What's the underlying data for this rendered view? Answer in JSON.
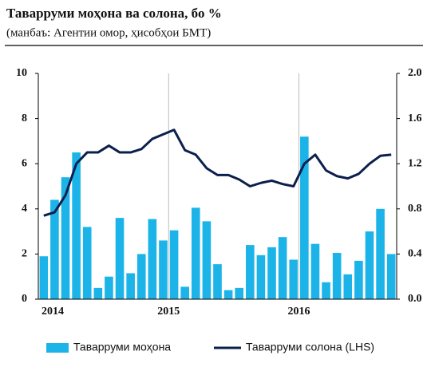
{
  "chart_data": {
    "type": "bar_line",
    "title": "Таварруми моҳона ва солона, бо %",
    "subtitle": "(манбаъ: Агентии омор, ҳисобҳои БМТ)",
    "categories": [
      "2014",
      null,
      null,
      null,
      null,
      null,
      null,
      null,
      null,
      null,
      null,
      null,
      "2015",
      null,
      null,
      null,
      null,
      null,
      null,
      null,
      null,
      null,
      null,
      null,
      "2016",
      null,
      null,
      null,
      null,
      null,
      null,
      null,
      null
    ],
    "series": [
      {
        "name": "Таварруми моҳона",
        "type": "bar",
        "axis": "y2",
        "color": "#1cb4e8",
        "values": [
          0.38,
          0.88,
          1.08,
          1.3,
          0.64,
          0.1,
          0.2,
          0.72,
          0.23,
          0.4,
          0.71,
          0.52,
          0.61,
          0.11,
          0.81,
          0.69,
          0.31,
          0.08,
          0.1,
          0.48,
          0.39,
          0.46,
          0.55,
          0.35,
          1.44,
          0.49,
          0.15,
          0.41,
          0.22,
          0.34,
          0.6,
          0.8,
          0.4
        ]
      },
      {
        "name": "Таварруми солона (LHS)",
        "type": "line",
        "axis": "y",
        "color": "#0b1f4d",
        "values": [
          3.7,
          3.85,
          4.6,
          6.0,
          6.5,
          6.5,
          6.8,
          6.5,
          6.5,
          6.65,
          7.1,
          7.3,
          7.5,
          6.6,
          6.4,
          5.8,
          5.5,
          5.5,
          5.3,
          5.0,
          5.15,
          5.25,
          5.1,
          5.0,
          6.0,
          6.4,
          5.7,
          5.45,
          5.35,
          5.55,
          6.0,
          6.35,
          6.4
        ]
      }
    ],
    "ylim": [
      0,
      10
    ],
    "yticks": [
      0,
      2,
      4,
      6,
      8,
      10
    ],
    "y2lim": [
      0,
      2
    ],
    "y2ticks": [
      {
        "value": 0,
        "label": "0.0"
      },
      {
        "value": 0.4,
        "label": "0.4"
      },
      {
        "value": 0.8,
        "label": "0.8"
      },
      {
        "value": 1.2,
        "label": "1.2"
      },
      {
        "value": 1.6,
        "label": "1.6"
      },
      {
        "value": 2,
        "label": "2.0"
      }
    ],
    "legend": "bottom"
  }
}
